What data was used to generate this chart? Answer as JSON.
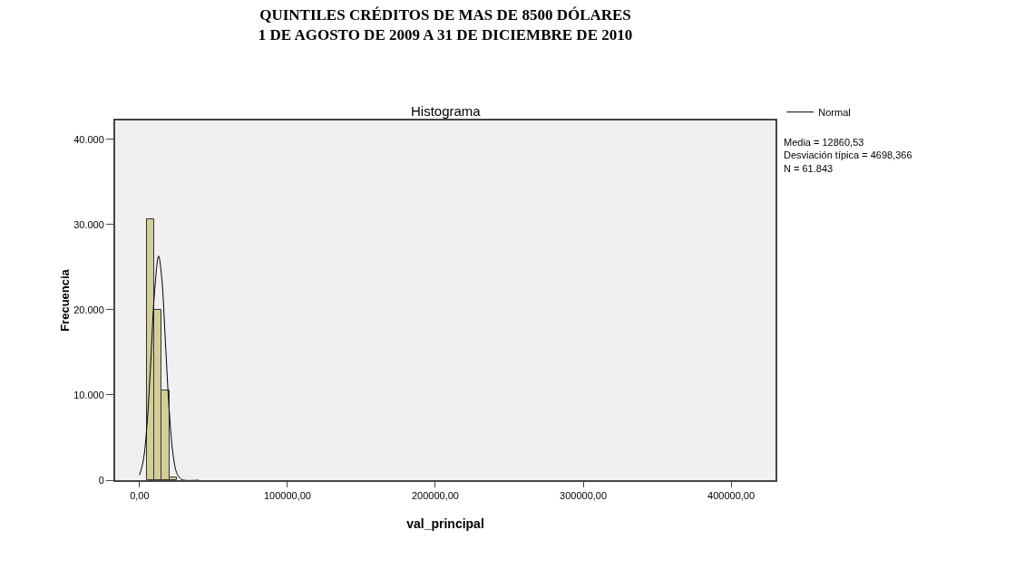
{
  "chart_data": {
    "type": "histogram",
    "title": "QUINTILES CRÉDITOS DE MAS DE 8500 DÓLARES",
    "subtitle": "1 DE AGOSTO DE 2009 A 31 DE DICIEMBRE DE 2010",
    "xlabel": "val_principal",
    "ylabel": "Frecuencia",
    "annotations": [
      "Histograma",
      "Media = 12860,53",
      "Desviación típica = 4698,366",
      "N = 61.843"
    ],
    "bins": [
      5000,
      10000,
      15000,
      20000,
      25000
    ],
    "values": [
      30600,
      20000,
      10500,
      300
    ],
    "color": "#d3ce97",
    "series": [
      {
        "type": "line",
        "name": "Normal",
        "color": "#000000",
        "x": [
          0,
          2500,
          5000,
          7500,
          10000,
          12860,
          15000,
          17500,
          20000,
          22500,
          25000,
          27500,
          30000,
          40000
        ],
        "values": [
          600,
          2300,
          6500,
          13700,
          21800,
          26300,
          23700,
          16100,
          8300,
          3200,
          900,
          200,
          0,
          0
        ]
      }
    ],
    "xlim": [
      -16500,
      430000
    ],
    "xticks": [
      {
        "value": 0,
        "label": "0,00"
      },
      {
        "value": 100000,
        "label": "100000,00"
      },
      {
        "value": 200000,
        "label": "200000,00"
      },
      {
        "value": 300000,
        "label": "300000,00"
      },
      {
        "value": 400000,
        "label": "400000,00"
      }
    ],
    "ylim": [
      0,
      42200
    ],
    "yticks": [
      {
        "value": 0,
        "label": "0"
      },
      {
        "value": 10000,
        "label": "10.000"
      },
      {
        "value": 20000,
        "label": "20.000"
      },
      {
        "value": 30000,
        "label": "30.000"
      },
      {
        "value": 40000,
        "label": "40.000"
      }
    ],
    "grid": false,
    "legend": "top right",
    "marker": "none",
    "line_style": "solid"
  }
}
